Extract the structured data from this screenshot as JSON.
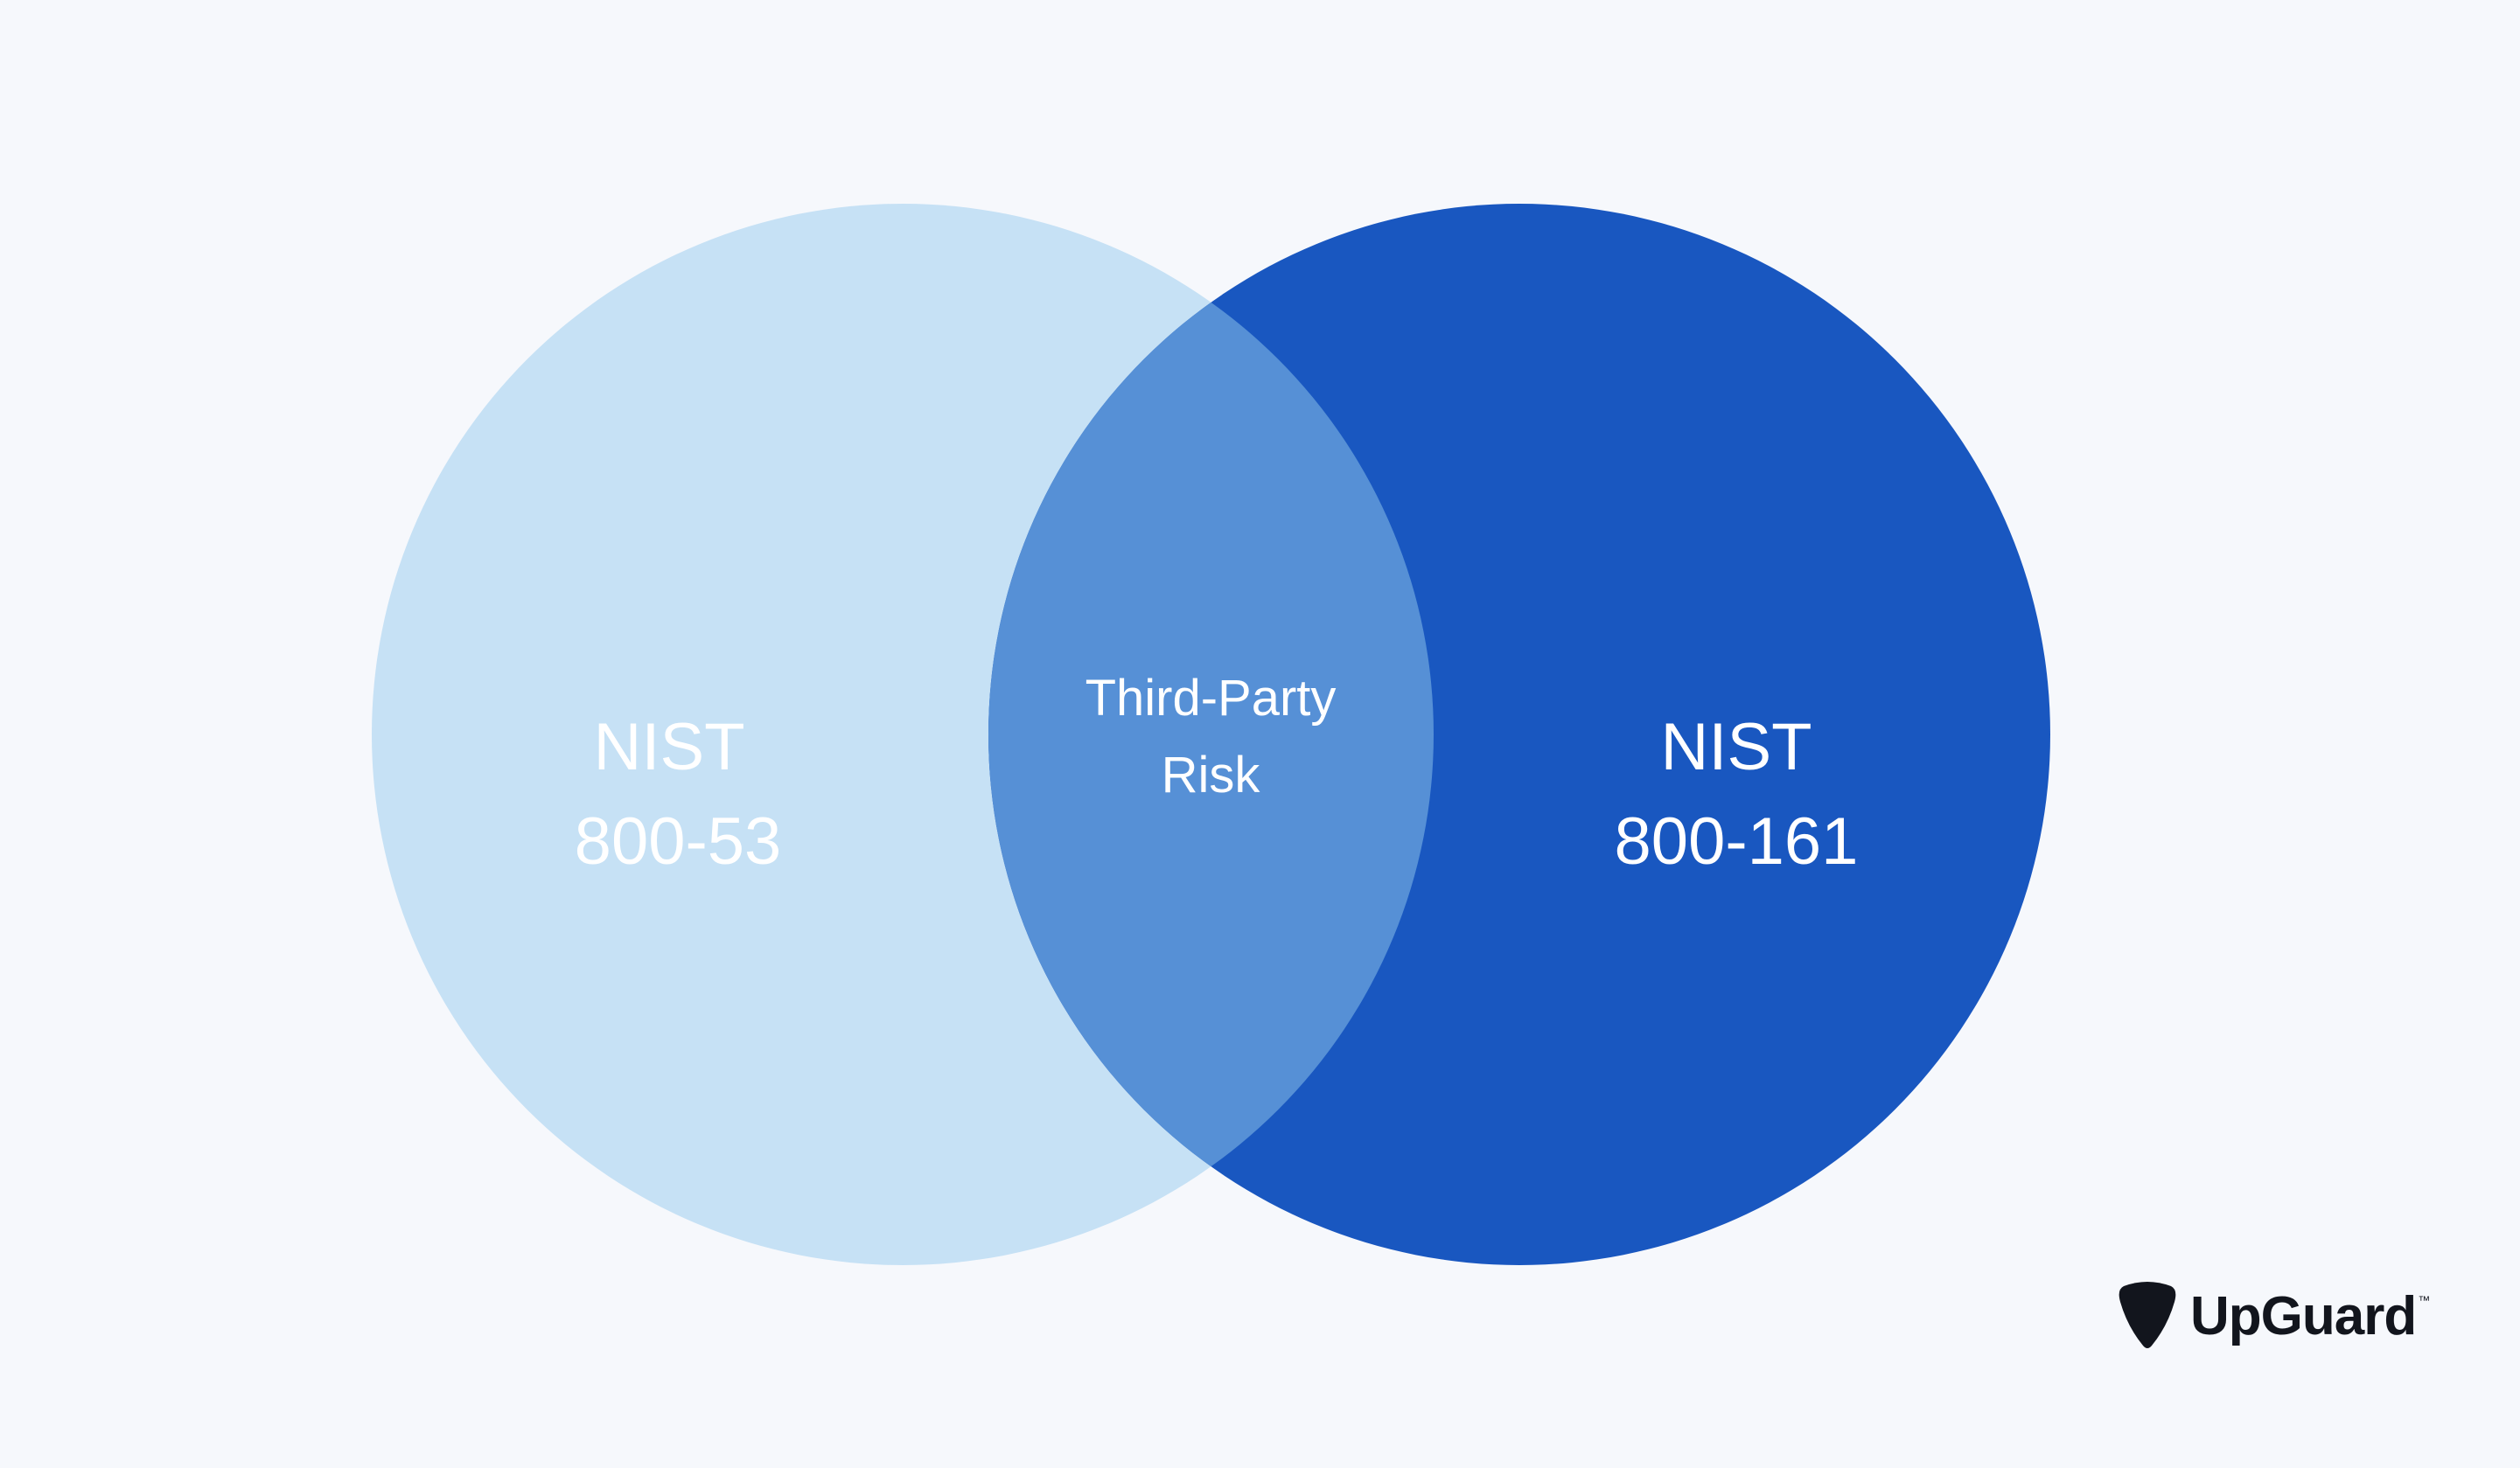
{
  "diagram": {
    "type": "venn",
    "colors": {
      "background": "#f6f8fc",
      "left": "#c6e1f5",
      "right": "#1957c0",
      "overlap": "#5690d6",
      "text": "#ffffff"
    },
    "left": {
      "line1": "NIST",
      "line2": "800-53"
    },
    "right": {
      "line1": "NIST",
      "line2": "800-161"
    },
    "overlap": {
      "line1": "Third-Party",
      "line2": "Risk"
    }
  },
  "logo": {
    "icon": "upguard-shield-icon",
    "word": "UpGuard",
    "tm": "™"
  }
}
